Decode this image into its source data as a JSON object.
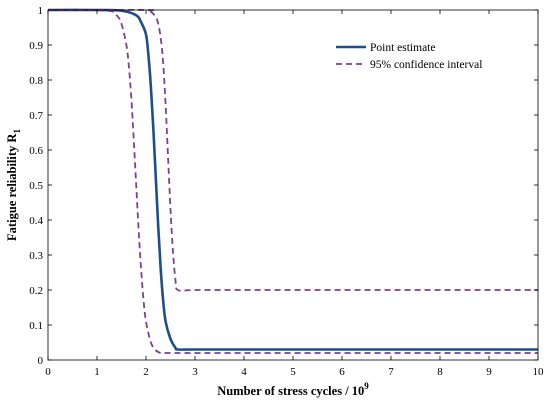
{
  "chart_data": {
    "type": "line",
    "xlabel": "Number of stress cycles / 10",
    "xlabel_exponent": "9",
    "ylabel": "Fatigue reliability R",
    "ylabel_subscript": "1",
    "xlim": [
      0,
      10
    ],
    "ylim": [
      0,
      1
    ],
    "x_ticks": [
      "0",
      "1",
      "2",
      "3",
      "4",
      "5",
      "6",
      "7",
      "8",
      "9",
      "10"
    ],
    "y_ticks": [
      "0",
      "0.1",
      "0.2",
      "0.3",
      "0.4",
      "0.5",
      "0.6",
      "0.7",
      "0.8",
      "0.9",
      "1"
    ],
    "grid": false,
    "legend_position": "top-right",
    "series": [
      {
        "name": "Point estimate",
        "color": "#1f4e8c",
        "style": "solid",
        "x": [
          0,
          1.0,
          1.5,
          1.8,
          1.9,
          2.0,
          2.05,
          2.1,
          2.15,
          2.2,
          2.25,
          2.3,
          2.35,
          2.4,
          2.5,
          2.6,
          2.65,
          3,
          4,
          5,
          6,
          7,
          8,
          9,
          10
        ],
        "y": [
          1.0,
          1.0,
          0.998,
          0.985,
          0.965,
          0.93,
          0.87,
          0.78,
          0.66,
          0.52,
          0.38,
          0.26,
          0.17,
          0.11,
          0.06,
          0.035,
          0.03,
          0.03,
          0.03,
          0.03,
          0.03,
          0.03,
          0.03,
          0.03,
          0.03
        ]
      },
      {
        "name": "95% confidence interval",
        "color": "#7b3f96",
        "style": "dashed",
        "x": [
          0,
          1.2,
          1.4,
          1.5,
          1.6,
          1.65,
          1.7,
          1.75,
          1.8,
          1.85,
          1.9,
          1.95,
          2.0,
          2.1,
          2.2,
          2.3,
          2.4,
          3,
          4,
          5,
          6,
          7,
          8,
          9,
          10
        ],
        "y": [
          1.0,
          0.998,
          0.985,
          0.96,
          0.9,
          0.84,
          0.75,
          0.63,
          0.5,
          0.37,
          0.26,
          0.17,
          0.11,
          0.05,
          0.028,
          0.02,
          0.02,
          0.02,
          0.02,
          0.02,
          0.02,
          0.02,
          0.02,
          0.02,
          0.02
        ]
      },
      {
        "name": "",
        "color": "#7b3f96",
        "style": "dashed",
        "x": [
          0,
          2.0,
          2.1,
          2.2,
          2.25,
          2.3,
          2.35,
          2.4,
          2.45,
          2.5,
          2.55,
          2.6,
          2.65,
          3,
          4,
          5,
          6,
          7,
          8,
          9,
          10
        ],
        "y": [
          1.0,
          1.0,
          0.995,
          0.98,
          0.96,
          0.92,
          0.85,
          0.73,
          0.58,
          0.43,
          0.31,
          0.23,
          0.2,
          0.2,
          0.2,
          0.2,
          0.2,
          0.2,
          0.2,
          0.2,
          0.2
        ]
      }
    ]
  }
}
